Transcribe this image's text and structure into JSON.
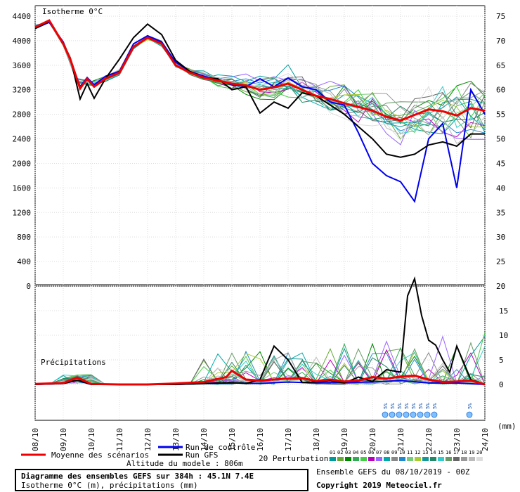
{
  "chart_data": [
    {
      "type": "line",
      "title": "Isotherme 0°C",
      "ylim": [
        0,
        4400
      ],
      "y_ticks_left": [
        0,
        400,
        800,
        1200,
        1600,
        2000,
        2400,
        2800,
        3200,
        3600,
        4000,
        4400
      ],
      "y_ticks_right": [
        20,
        25,
        30,
        35,
        40,
        45,
        50,
        55,
        60,
        65,
        70,
        75
      ],
      "x_range": [
        0,
        16
      ],
      "series": [
        {
          "name": "Moyenne des scénarios",
          "color": "#ee0000",
          "points": [
            [
              0,
              4220
            ],
            [
              0.5,
              4330
            ],
            [
              1,
              3950
            ],
            [
              1.25,
              3700
            ],
            [
              1.6,
              3220
            ],
            [
              1.85,
              3380
            ],
            [
              2.1,
              3250
            ],
            [
              2.5,
              3380
            ],
            [
              3,
              3480
            ],
            [
              3.5,
              3900
            ],
            [
              4,
              4050
            ],
            [
              4.5,
              3950
            ],
            [
              5,
              3600
            ],
            [
              5.5,
              3480
            ],
            [
              6,
              3400
            ],
            [
              6.5,
              3350
            ],
            [
              7,
              3300
            ],
            [
              7.5,
              3270
            ],
            [
              8,
              3200
            ],
            [
              8.5,
              3240
            ],
            [
              9,
              3300
            ],
            [
              9.5,
              3200
            ],
            [
              10,
              3100
            ],
            [
              10.5,
              3050
            ],
            [
              11,
              2980
            ],
            [
              11.5,
              2920
            ],
            [
              12,
              2860
            ],
            [
              12.5,
              2760
            ],
            [
              13,
              2700
            ],
            [
              13.5,
              2790
            ],
            [
              14,
              2880
            ],
            [
              14.5,
              2850
            ],
            [
              15,
              2780
            ],
            [
              15.5,
              2900
            ],
            [
              16,
              2860
            ]
          ]
        },
        {
          "name": "Run de contrôle",
          "color": "#0000ee",
          "points": [
            [
              0,
              4200
            ],
            [
              0.5,
              4300
            ],
            [
              1,
              3980
            ],
            [
              1.25,
              3700
            ],
            [
              1.6,
              3250
            ],
            [
              1.85,
              3400
            ],
            [
              2.1,
              3280
            ],
            [
              2.5,
              3420
            ],
            [
              3,
              3500
            ],
            [
              3.5,
              3950
            ],
            [
              4,
              4080
            ],
            [
              4.5,
              3980
            ],
            [
              5,
              3650
            ],
            [
              5.5,
              3500
            ],
            [
              6,
              3420
            ],
            [
              6.5,
              3360
            ],
            [
              7,
              3280
            ],
            [
              7.5,
              3250
            ],
            [
              8,
              3380
            ],
            [
              8.5,
              3250
            ],
            [
              9,
              3390
            ],
            [
              9.5,
              3250
            ],
            [
              10,
              3200
            ],
            [
              10.5,
              3000
            ],
            [
              11,
              2950
            ],
            [
              11.5,
              2500
            ],
            [
              12,
              2000
            ],
            [
              12.5,
              1800
            ],
            [
              13,
              1700
            ],
            [
              13.5,
              1380
            ],
            [
              14,
              2400
            ],
            [
              14.5,
              2650
            ],
            [
              15,
              1600
            ],
            [
              15.5,
              3200
            ],
            [
              16,
              2800
            ]
          ]
        },
        {
          "name": "Run GFS",
          "color": "#000000",
          "points": [
            [
              0,
              4200
            ],
            [
              0.5,
              4320
            ],
            [
              1,
              3960
            ],
            [
              1.25,
              3720
            ],
            [
              1.6,
              3050
            ],
            [
              1.85,
              3300
            ],
            [
              2.1,
              3060
            ],
            [
              2.5,
              3380
            ],
            [
              3,
              3700
            ],
            [
              3.5,
              4050
            ],
            [
              4,
              4270
            ],
            [
              4.5,
              4100
            ],
            [
              5,
              3680
            ],
            [
              5.5,
              3500
            ],
            [
              6,
              3400
            ],
            [
              6.5,
              3380
            ],
            [
              7,
              3200
            ],
            [
              7.5,
              3250
            ],
            [
              8,
              2820
            ],
            [
              8.5,
              3000
            ],
            [
              9,
              2900
            ],
            [
              9.5,
              3150
            ],
            [
              10,
              3100
            ],
            [
              10.5,
              2950
            ],
            [
              11,
              2800
            ],
            [
              11.5,
              2600
            ],
            [
              12,
              2400
            ],
            [
              12.5,
              2150
            ],
            [
              13,
              2100
            ],
            [
              13.5,
              2150
            ],
            [
              14,
              2300
            ],
            [
              14.5,
              2350
            ],
            [
              15,
              2280
            ],
            [
              15.5,
              2480
            ],
            [
              16,
              2480
            ]
          ]
        }
      ]
    },
    {
      "type": "line",
      "title": "Précipitations",
      "ylim": [
        0,
        20
      ],
      "y_ticks_right": [
        0,
        5,
        10,
        15,
        20
      ],
      "x_range": [
        0,
        16
      ],
      "series": [
        {
          "name": "Moyenne des scénarios",
          "color": "#ee0000",
          "points": [
            [
              0,
              0.1
            ],
            [
              1,
              0.3
            ],
            [
              1.5,
              1.4
            ],
            [
              2,
              0.1
            ],
            [
              3,
              0
            ],
            [
              4,
              0
            ],
            [
              5,
              0.2
            ],
            [
              6,
              0.5
            ],
            [
              6.8,
              1.5
            ],
            [
              7,
              2.8
            ],
            [
              7.5,
              1
            ],
            [
              8,
              0.8
            ],
            [
              9,
              1.2
            ],
            [
              9.5,
              1.3
            ],
            [
              10,
              0.7
            ],
            [
              10.5,
              1
            ],
            [
              11,
              0.6
            ],
            [
              11.5,
              0.8
            ],
            [
              12,
              1.5
            ],
            [
              12.5,
              1.2
            ],
            [
              13,
              1.6
            ],
            [
              13.5,
              1.8
            ],
            [
              14,
              1
            ],
            [
              14.5,
              0.5
            ],
            [
              15,
              0.6
            ],
            [
              15.5,
              0.8
            ],
            [
              16,
              0
            ]
          ]
        },
        {
          "name": "Run de contrôle",
          "color": "#0000ee",
          "points": [
            [
              0,
              0
            ],
            [
              1,
              0.2
            ],
            [
              1.5,
              0.8
            ],
            [
              2,
              0
            ],
            [
              5,
              0
            ],
            [
              6,
              0.2
            ],
            [
              7,
              0.3
            ],
            [
              8,
              0.2
            ],
            [
              9,
              0.5
            ],
            [
              10,
              0.3
            ],
            [
              11,
              0.4
            ],
            [
              12,
              0.5
            ],
            [
              13,
              0.8
            ],
            [
              14,
              0.3
            ],
            [
              15,
              0.3
            ],
            [
              16,
              0
            ]
          ]
        },
        {
          "name": "Run GFS",
          "color": "#000000",
          "points": [
            [
              0,
              0
            ],
            [
              1,
              0.2
            ],
            [
              1.5,
              0.9
            ],
            [
              2,
              0
            ],
            [
              5,
              0
            ],
            [
              6,
              0.2
            ],
            [
              7,
              0.4
            ],
            [
              7.5,
              0.2
            ],
            [
              8,
              1
            ],
            [
              8.5,
              7.8
            ],
            [
              9,
              5
            ],
            [
              9.5,
              0.4
            ],
            [
              10,
              0.5
            ],
            [
              10.5,
              0.8
            ],
            [
              11,
              0.3
            ],
            [
              11.5,
              1.5
            ],
            [
              12,
              0.6
            ],
            [
              12.5,
              3
            ],
            [
              13,
              2.5
            ],
            [
              13.25,
              18
            ],
            [
              13.5,
              21.5
            ],
            [
              13.75,
              14
            ],
            [
              14,
              9
            ],
            [
              14.25,
              8
            ],
            [
              14.5,
              5
            ],
            [
              14.75,
              2.5
            ],
            [
              15,
              7.8
            ],
            [
              15.5,
              1
            ],
            [
              16,
              0
            ]
          ]
        }
      ]
    }
  ],
  "x_labels": [
    "08/10",
    "09/10",
    "10/10",
    "11/10",
    "12/10",
    "13/10",
    "14/10",
    "15/10",
    "16/10",
    "17/10",
    "18/10",
    "19/10",
    "20/10",
    "21/10",
    "22/10",
    "23/10",
    "24/10"
  ],
  "x_unit": "(mm)",
  "snow_labels": [
    "5%",
    "5%",
    "5%",
    "5%",
    "5%",
    "5%",
    "5%",
    "5%",
    "5%"
  ],
  "legend": {
    "mean": "Moyenne des scénarios",
    "control": "Run de contrôle",
    "gfs": "Run GFS",
    "altitude": "Altitude du modele : 806m",
    "perturbations": "20 Perturbations",
    "pert_numbers": [
      "01",
      "02",
      "03",
      "04",
      "05",
      "06",
      "07",
      "08",
      "09",
      "10",
      "11",
      "12",
      "13",
      "14",
      "15",
      "16",
      "17",
      "18",
      "19",
      "20"
    ],
    "pert_colors": [
      "#009999",
      "#66aa33",
      "#008800",
      "#33aa55",
      "#44cc44",
      "#bb00bb",
      "#9966ff",
      "#00aaaa",
      "#888888",
      "#2288cc",
      "#77cc77",
      "#aacc33",
      "#119999",
      "#228866",
      "#33cccc",
      "#669966",
      "#666666",
      "#999999",
      "#bbbbbb",
      "#dddddd"
    ]
  },
  "footer": {
    "title": "Diagramme des ensembles GEFS sur 384h : 45.1N 7.4E",
    "subtitle": "Isotherme 0°C (m), précipitations (mm)",
    "run": "Ensemble GEFS du 08/10/2019 - 00Z",
    "copyright": "Copyright 2019 Meteociel.fr"
  }
}
